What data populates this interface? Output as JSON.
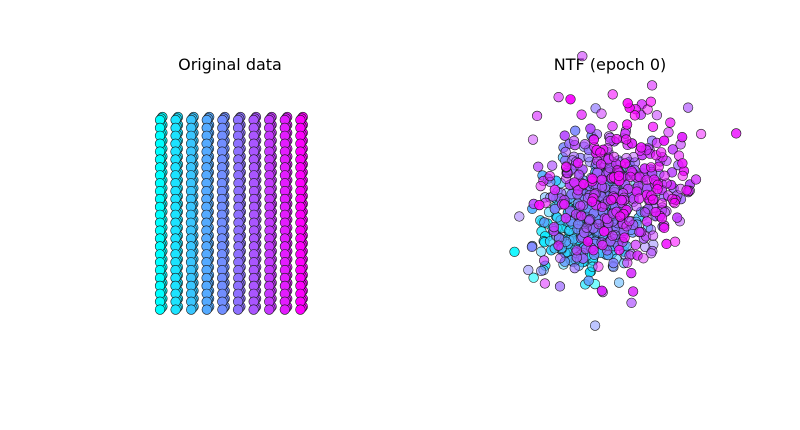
{
  "chart_data": [
    {
      "type": "scatter",
      "title": "Original data",
      "colormap": "cool",
      "color_start": "#00ffff",
      "color_end": "#ff00ff",
      "description_dims": {
        "columns": 10,
        "rows": 25,
        "depth_rows": 3
      },
      "xlabel": "",
      "ylabel": ""
    },
    {
      "type": "scatter",
      "title": "NTF (epoch 0)",
      "colormap": "cool",
      "color_start": "#00ffff",
      "color_end": "#ff00ff",
      "n_points": 750,
      "xlabel": "",
      "ylabel": ""
    }
  ]
}
